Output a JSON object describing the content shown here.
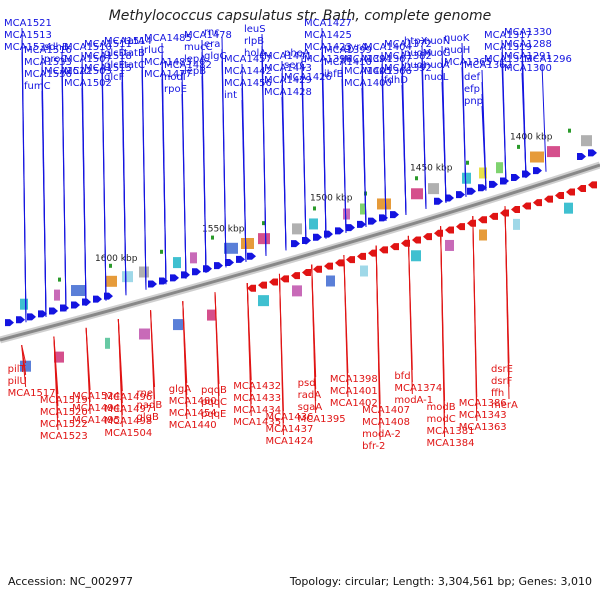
{
  "title": "Methylococcus capsulatus str. Bath, complete genome",
  "footer": {
    "accession": "Accession: NC_002977",
    "stats": "Topology: circular; Length: 3,304,561 bp; Genes: 3,010"
  },
  "colors": {
    "forward_strand": "#1414e0",
    "reverse_strand": "#e01414",
    "backbone": "#888888",
    "marker": "#2a9a2a"
  },
  "scale_ticks": [
    "1400 kbp",
    "1450 kbp",
    "1500 kbp",
    "1550 kbp",
    "1600 kbp"
  ],
  "forward_labels": [
    "MCA1521",
    "MCA1513",
    "MCA1534",
    "MCA1516",
    "MCA1533",
    "MCA1536",
    "fumC",
    "sdhB",
    "proC",
    "MCA1512",
    "MCA1510",
    "MCA1507",
    "MCA1503",
    "MCA1502",
    "MCA1511",
    "MCA1518",
    "MCA1515",
    "MCA1514",
    "glcD",
    "glcE",
    "glcF",
    "tatA",
    "tatB",
    "tatC",
    "MCA1485",
    "rluC",
    "MCA1483",
    "MCA1477",
    "MCA1482",
    "nodI",
    "rpoE",
    "MCA1478",
    "mucC",
    "lepA",
    "lepB",
    "rnc",
    "era",
    "glgC",
    "MCA1457",
    "MCA1442",
    "MCA1456",
    "int",
    "leuS",
    "rlpB",
    "holA",
    "MCA1441",
    "MCA1443",
    "MCA1429",
    "MCA1428",
    "pheA",
    "serC",
    "MCA1426",
    "MCA1427",
    "MCA1425",
    "MCA1423",
    "MCA1396",
    "MCA1399",
    "MCA1410",
    "ihfB",
    "gyrA",
    "MCA1394",
    "MCA1405",
    "MCA1400",
    "MCA1404",
    "MCA1367",
    "MCA1366",
    "MCA1372",
    "MCA1382",
    "MCA1392",
    "fdhD",
    "htpX",
    "nuoM",
    "nuoJ",
    "nuoN",
    "nuoG",
    "nuoA",
    "nuoL",
    "nuoK",
    "nuoH",
    "MCA1365",
    "MCA1362",
    "def",
    "efp",
    "pnp",
    "MCA1317",
    "MCA1319",
    "MCA1313",
    "MCA1330",
    "MCA1288",
    "MCA1291",
    "MCA1300",
    "MCA1296"
  ],
  "reverse_labels": [
    "pilT",
    "pilU",
    "MCA1517",
    "MCA1519",
    "MCA1520",
    "MCA1522",
    "MCA1523",
    "MCA1524",
    "MCA1494",
    "MCA1495",
    "MCA1496",
    "MCA1497",
    "MCA1498",
    "MCA1504",
    "rne",
    "nadB",
    "glgB",
    "glgA",
    "MCA1480",
    "MCA1454",
    "MCA1440",
    "pqqB",
    "pqqC",
    "pqqE",
    "MCA1432",
    "MCA1433",
    "MCA1434",
    "MCA1435",
    "MCA1436",
    "MCA1437",
    "MCA1424",
    "psd",
    "radA",
    "sgaA",
    "MCA1395",
    "MCA1398",
    "MCA1401",
    "MCA1402",
    "MCA1407",
    "MCA1408",
    "modA-2",
    "bfr-2",
    "bfd",
    "MCA1374",
    "modA-1",
    "modB",
    "modC",
    "MCA1381",
    "MCA1384",
    "MCA1386",
    "MCA1343",
    "MCA1363",
    "dsrE",
    "dsrF",
    "ffh",
    "merA"
  ]
}
